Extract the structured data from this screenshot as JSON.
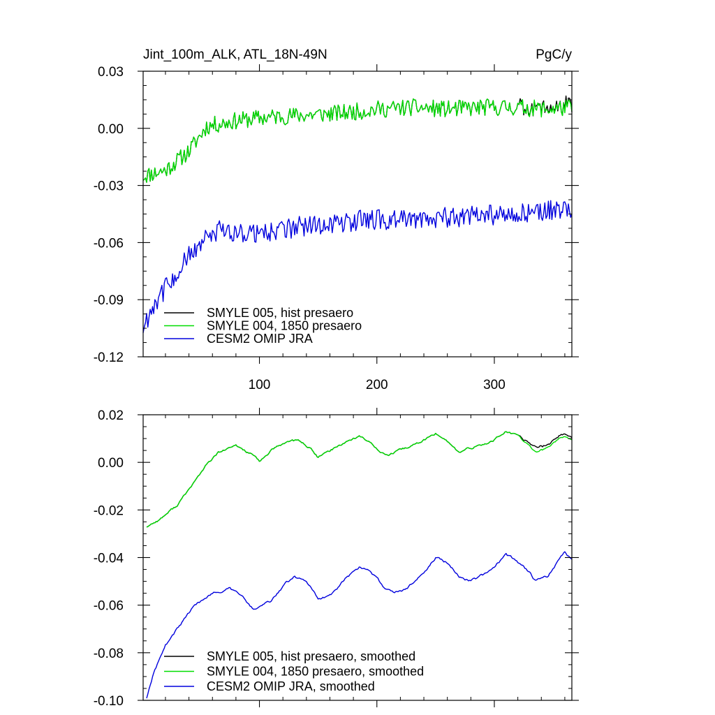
{
  "chart_data": [
    {
      "type": "line",
      "title": "Jint_100m_ALK, ATL_18N-49N",
      "units": "PgC/y",
      "xlim": [
        1,
        366
      ],
      "ylim": [
        -0.12,
        0.03
      ],
      "xticks": [
        100,
        200,
        300
      ],
      "xtick_labels": [
        "100",
        "200",
        "300"
      ],
      "yticks": [
        -0.12,
        -0.09,
        -0.06,
        -0.03,
        0.0,
        0.03
      ],
      "ytick_labels": [
        "-0.12",
        "-0.09",
        "-0.06",
        "-0.03",
        "0.00",
        "0.03"
      ],
      "legend_position": "bottom-left",
      "series": [
        {
          "name": "SMYLE 005, hist presaero",
          "color": "#000000",
          "role": "hist",
          "anchors": [
            [
              1,
              -0.025
            ],
            [
              20,
              -0.022
            ],
            [
              40,
              -0.012
            ],
            [
              55,
              0.001
            ],
            [
              80,
              0.004
            ],
            [
              110,
              0.006
            ],
            [
              140,
              0.007
            ],
            [
              170,
              0.008
            ],
            [
              200,
              0.01
            ],
            [
              230,
              0.011
            ],
            [
              260,
              0.01
            ],
            [
              290,
              0.011
            ],
            [
              320,
              0.011
            ],
            [
              345,
              0.01
            ],
            [
              366,
              0.011
            ]
          ],
          "noise": 0.0045
        },
        {
          "name": "SMYLE 004, 1850 presaero",
          "color": "#00dd00",
          "role": "green",
          "anchors": [
            [
              1,
              -0.025
            ],
            [
              20,
              -0.022
            ],
            [
              40,
              -0.012
            ],
            [
              55,
              0.001
            ],
            [
              80,
              0.004
            ],
            [
              110,
              0.006
            ],
            [
              140,
              0.007
            ],
            [
              170,
              0.008
            ],
            [
              200,
              0.01
            ],
            [
              230,
              0.011
            ],
            [
              260,
              0.01
            ],
            [
              290,
              0.011
            ],
            [
              320,
              0.011
            ],
            [
              345,
              0.01
            ],
            [
              366,
              0.011
            ]
          ],
          "noise": 0.0045
        },
        {
          "name": "CESM2 OMIP JRA",
          "color": "#0000dd",
          "role": "blue",
          "anchors": [
            [
              1,
              -0.105
            ],
            [
              10,
              -0.092
            ],
            [
              25,
              -0.08
            ],
            [
              45,
              -0.063
            ],
            [
              65,
              -0.054
            ],
            [
              100,
              -0.055
            ],
            [
              130,
              -0.052
            ],
            [
              160,
              -0.05
            ],
            [
              190,
              -0.048
            ],
            [
              220,
              -0.048
            ],
            [
              250,
              -0.047
            ],
            [
              280,
              -0.046
            ],
            [
              310,
              -0.045
            ],
            [
              340,
              -0.044
            ],
            [
              366,
              -0.042
            ]
          ],
          "noise": 0.0055
        }
      ]
    },
    {
      "type": "line",
      "xlim": [
        1,
        366
      ],
      "ylim": [
        -0.1,
        0.02
      ],
      "xticks": [
        100,
        200,
        300
      ],
      "xtick_labels": [],
      "yticks": [
        -0.1,
        -0.08,
        -0.06,
        -0.04,
        -0.02,
        0.0,
        0.02
      ],
      "ytick_labels": [
        "-0.10",
        "-0.08",
        "-0.06",
        "-0.04",
        "-0.02",
        "0.00",
        "0.02"
      ],
      "legend_position": "bottom-left",
      "series": [
        {
          "name": "SMYLE 005, hist presaero, smoothed",
          "color": "#000000",
          "role": "hist",
          "anchors": [
            [
              4,
              -0.027
            ],
            [
              15,
              -0.024
            ],
            [
              30,
              -0.018
            ],
            [
              45,
              -0.008
            ],
            [
              55,
              -0.001
            ],
            [
              65,
              0.004
            ],
            [
              80,
              0.007
            ],
            [
              95,
              0.003
            ],
            [
              100,
              0.0
            ],
            [
              110,
              0.005
            ],
            [
              125,
              0.009
            ],
            [
              135,
              0.009
            ],
            [
              145,
              0.005
            ],
            [
              150,
              0.002
            ],
            [
              160,
              0.005
            ],
            [
              175,
              0.009
            ],
            [
              185,
              0.011
            ],
            [
              195,
              0.008
            ],
            [
              205,
              0.004
            ],
            [
              210,
              0.003
            ],
            [
              220,
              0.005
            ],
            [
              235,
              0.008
            ],
            [
              250,
              0.012
            ],
            [
              258,
              0.01
            ],
            [
              270,
              0.004
            ],
            [
              280,
              0.006
            ],
            [
              295,
              0.008
            ],
            [
              310,
              0.013
            ],
            [
              320,
              0.011
            ],
            [
              330,
              0.008
            ],
            [
              335,
              0.006
            ],
            [
              345,
              0.007
            ],
            [
              355,
              0.011
            ],
            [
              362,
              0.012
            ],
            [
              366,
              0.01
            ]
          ],
          "noise": 0.0006
        },
        {
          "name": "SMYLE 004, 1850 presaero, smoothed",
          "color": "#00dd00",
          "role": "green",
          "anchors": [
            [
              4,
              -0.027
            ],
            [
              15,
              -0.024
            ],
            [
              30,
              -0.018
            ],
            [
              45,
              -0.008
            ],
            [
              55,
              -0.001
            ],
            [
              65,
              0.004
            ],
            [
              80,
              0.007
            ],
            [
              95,
              0.003
            ],
            [
              100,
              0.0
            ],
            [
              110,
              0.005
            ],
            [
              125,
              0.009
            ],
            [
              135,
              0.009
            ],
            [
              145,
              0.005
            ],
            [
              150,
              0.002
            ],
            [
              160,
              0.005
            ],
            [
              175,
              0.009
            ],
            [
              185,
              0.011
            ],
            [
              195,
              0.008
            ],
            [
              205,
              0.004
            ],
            [
              210,
              0.003
            ],
            [
              220,
              0.005
            ],
            [
              235,
              0.008
            ],
            [
              250,
              0.012
            ],
            [
              258,
              0.01
            ],
            [
              270,
              0.004
            ],
            [
              280,
              0.006
            ],
            [
              295,
              0.008
            ],
            [
              310,
              0.013
            ],
            [
              320,
              0.011
            ],
            [
              330,
              0.007
            ],
            [
              335,
              0.004
            ],
            [
              345,
              0.006
            ],
            [
              355,
              0.01
            ],
            [
              362,
              0.011
            ],
            [
              366,
              0.009
            ]
          ],
          "noise": 0.0006
        },
        {
          "name": "CESM2 OMIP JRA, smoothed",
          "color": "#0000dd",
          "role": "blue",
          "anchors": [
            [
              4,
              -0.099
            ],
            [
              10,
              -0.088
            ],
            [
              20,
              -0.077
            ],
            [
              30,
              -0.07
            ],
            [
              45,
              -0.06
            ],
            [
              60,
              -0.055
            ],
            [
              75,
              -0.053
            ],
            [
              85,
              -0.056
            ],
            [
              95,
              -0.062
            ],
            [
              110,
              -0.058
            ],
            [
              120,
              -0.052
            ],
            [
              130,
              -0.048
            ],
            [
              140,
              -0.05
            ],
            [
              150,
              -0.057
            ],
            [
              160,
              -0.056
            ],
            [
              175,
              -0.048
            ],
            [
              185,
              -0.044
            ],
            [
              195,
              -0.046
            ],
            [
              205,
              -0.052
            ],
            [
              215,
              -0.055
            ],
            [
              225,
              -0.053
            ],
            [
              235,
              -0.049
            ],
            [
              250,
              -0.04
            ],
            [
              260,
              -0.042
            ],
            [
              270,
              -0.048
            ],
            [
              280,
              -0.05
            ],
            [
              295,
              -0.046
            ],
            [
              310,
              -0.039
            ],
            [
              320,
              -0.042
            ],
            [
              330,
              -0.046
            ],
            [
              335,
              -0.05
            ],
            [
              345,
              -0.048
            ],
            [
              355,
              -0.041
            ],
            [
              360,
              -0.038
            ],
            [
              366,
              -0.041
            ]
          ],
          "noise": 0.0007
        }
      ]
    }
  ]
}
